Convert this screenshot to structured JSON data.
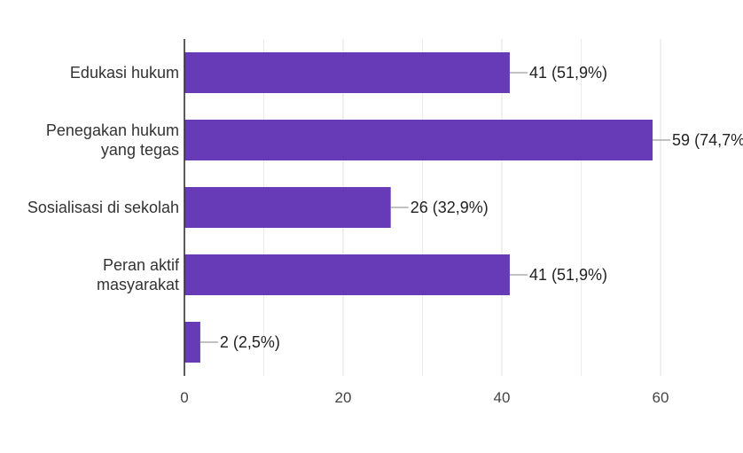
{
  "colors": {
    "bar": "#673ab7",
    "grid": "#e6e6e6",
    "axis": "#333333",
    "leader": "#9e9e9e"
  },
  "chart_data": {
    "type": "bar",
    "orientation": "horizontal",
    "categories": [
      [
        "Edukasi hukum"
      ],
      [
        "Penegakan hukum",
        "yang tegas"
      ],
      [
        "Sosialisasi di sekolah"
      ],
      [
        "Peran aktif",
        "masyarakat"
      ],
      [
        ""
      ]
    ],
    "values": [
      41,
      59,
      26,
      41,
      2
    ],
    "data_labels": [
      "41 (51,9%)",
      "59 (74,7%)",
      "26 (32,9%)",
      "41 (51,9%)",
      "2 (2,5%)"
    ],
    "xlim": [
      0,
      60
    ],
    "xticks": [
      0,
      20,
      40,
      60
    ],
    "grid": true,
    "legend": "none",
    "title": "",
    "xlabel": "",
    "ylabel": ""
  }
}
